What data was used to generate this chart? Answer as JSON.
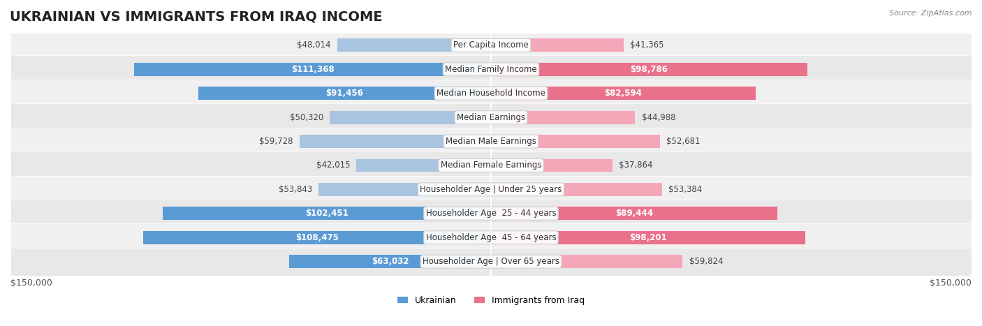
{
  "title": "UKRAINIAN VS IMMIGRANTS FROM IRAQ INCOME",
  "source": "Source: ZipAtlas.com",
  "categories": [
    "Per Capita Income",
    "Median Family Income",
    "Median Household Income",
    "Median Earnings",
    "Median Male Earnings",
    "Median Female Earnings",
    "Householder Age | Under 25 years",
    "Householder Age  25 - 44 years",
    "Householder Age  45 - 64 years",
    "Householder Age | Over 65 years"
  ],
  "ukrainian_values": [
    48014,
    111368,
    91456,
    50320,
    59728,
    42015,
    53843,
    102451,
    108475,
    63032
  ],
  "iraq_values": [
    41365,
    98786,
    82594,
    44988,
    52681,
    37864,
    53384,
    89444,
    98201,
    59824
  ],
  "ukrainian_labels": [
    "$48,014",
    "$111,368",
    "$91,456",
    "$50,320",
    "$59,728",
    "$42,015",
    "$53,843",
    "$102,451",
    "$108,475",
    "$63,032"
  ],
  "iraq_labels": [
    "$41,365",
    "$98,786",
    "$82,594",
    "$44,988",
    "$52,681",
    "$37,864",
    "$53,384",
    "$89,444",
    "$98,201",
    "$59,824"
  ],
  "max_value": 150000,
  "ukrainian_color_bar": "#a8c4e0",
  "ukrainian_color_solid": "#5b9bd5",
  "iraq_color_bar": "#f4a7b9",
  "iraq_color_solid": "#e9718a",
  "label_inside_threshold": 60000,
  "background_color": "#f5f5f5",
  "row_background": "#efefef",
  "row_background_alt": "#e8e8e8",
  "xlabel_left": "$150,000",
  "xlabel_right": "$150,000",
  "legend_ukrainian": "Ukrainian",
  "legend_iraq": "Immigrants from Iraq",
  "title_fontsize": 14,
  "label_fontsize": 8.5,
  "category_fontsize": 8.5
}
